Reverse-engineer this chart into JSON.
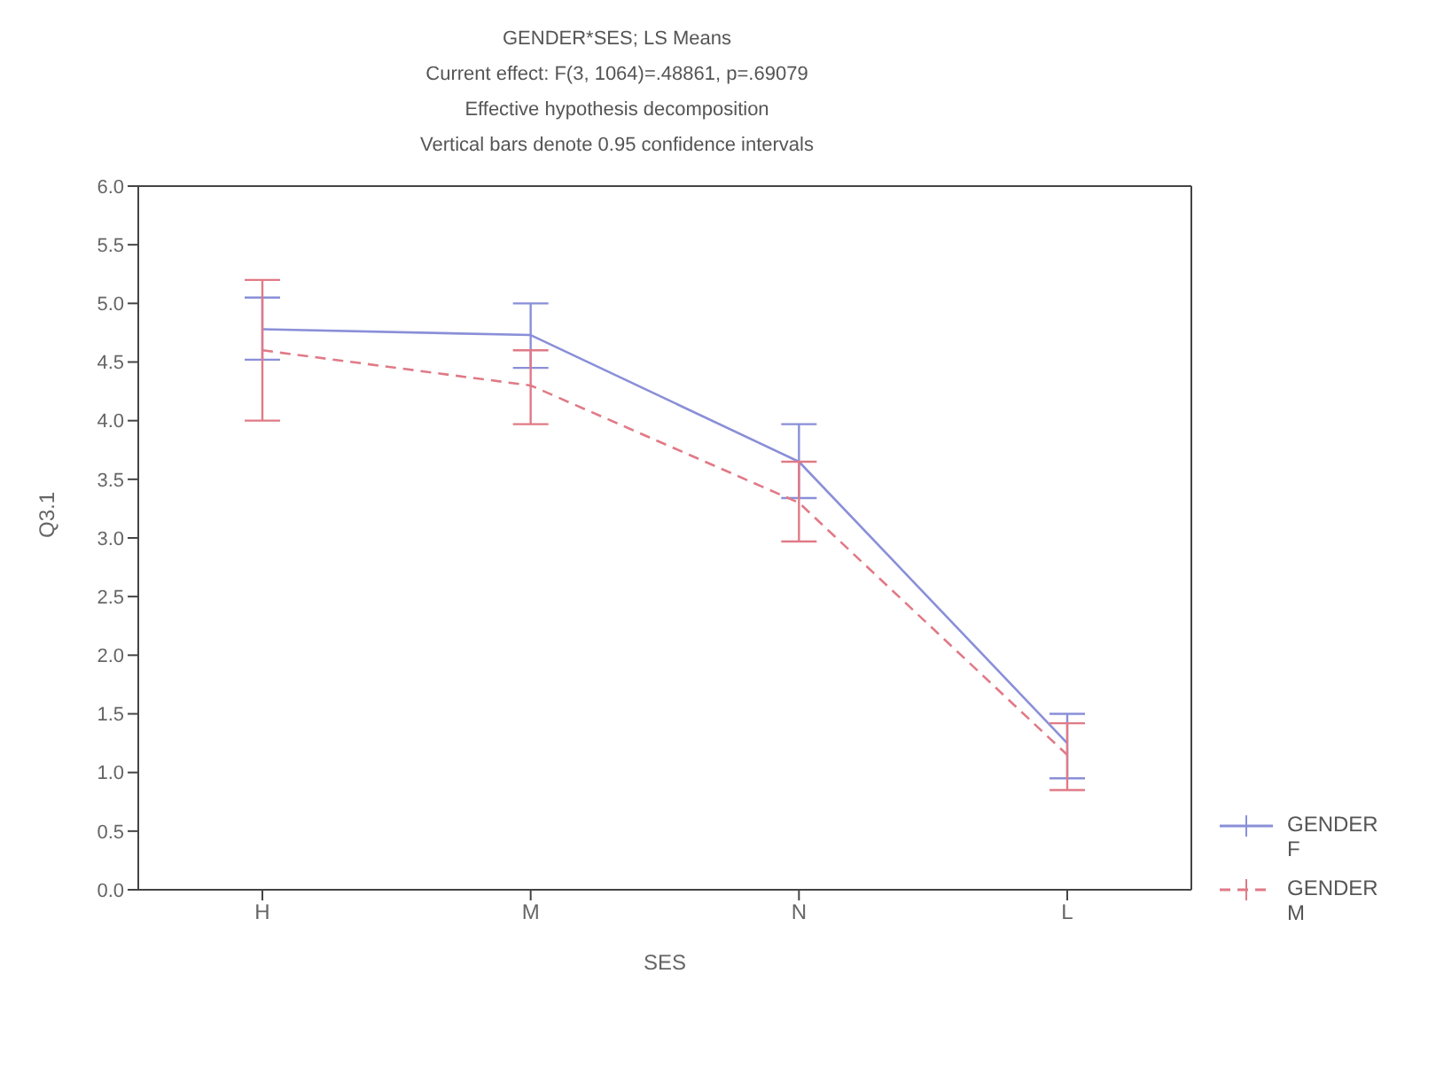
{
  "chart_data": {
    "type": "line",
    "title": "GENDER*SES; LS Means",
    "subtitle": "Current effect: F(3, 1064)=.48861, p=.69079\nEffective hypothesis decomposition\nVertical bars denote 0.95 confidence intervals",
    "xlabel": "SES",
    "ylabel": "Q3.1",
    "categories": [
      "H",
      "M",
      "N",
      "L"
    ],
    "series": [
      {
        "name": "GENDER F",
        "color": "#8a8fd8",
        "line_style": "solid",
        "values": [
          4.78,
          4.73,
          3.65,
          1.25
        ],
        "errors": [
          [
            4.52,
            5.05
          ],
          [
            4.45,
            5.0
          ],
          [
            3.34,
            3.97
          ],
          [
            0.95,
            1.5
          ]
        ]
      },
      {
        "name": "GENDER M",
        "color": "#e07a86",
        "line_style": "dashed",
        "values": [
          4.6,
          4.3,
          3.3,
          1.15
        ],
        "errors": [
          [
            4.0,
            5.2
          ],
          [
            3.97,
            4.6
          ],
          [
            2.97,
            3.65
          ],
          [
            0.85,
            1.42
          ]
        ]
      }
    ],
    "ylim": [
      0,
      6
    ],
    "yticks": [
      {
        "value": 0,
        "label": "0.0"
      },
      0.5,
      {
        "value": 1,
        "label": "1.0"
      },
      1.5,
      {
        "value": 2,
        "label": "2.0"
      },
      2.5,
      {
        "value": 3,
        "label": "3.0"
      },
      3.5,
      {
        "value": 4,
        "label": "4.0"
      },
      4.5,
      {
        "value": 5,
        "label": "5.0"
      },
      5.5,
      {
        "value": 6,
        "label": "6.0"
      }
    ],
    "grid": false,
    "legend": "bottom right",
    "marker": "none"
  }
}
